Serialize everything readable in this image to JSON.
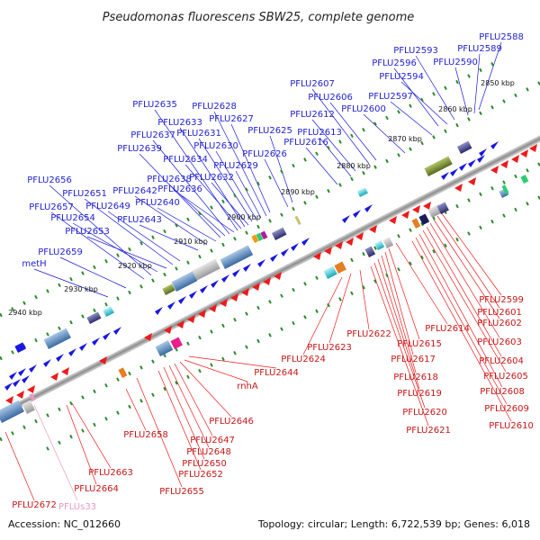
{
  "title": "Pseudomonas fluorescens SBW25, complete genome",
  "footer": {
    "accession": "Accession: NC_012660",
    "summary": "Topology: circular; Length: 6,722,539 bp; Genes: 6,018"
  },
  "scale_labels": [
    "2850 kbp",
    "2860 kbp",
    "2870 kbp",
    "2880 kbp",
    "2890 kbp",
    "2900 kbp",
    "2910 kbp",
    "2920 kbp",
    "2930 kbp",
    "2940 kbp"
  ],
  "colors": {
    "forward": "#1818e0",
    "reverse": "#ee1a1a",
    "rna": "#e89ac0",
    "backbone": "#999999",
    "tick": "#2a8a2a"
  },
  "top_labels": [
    "PFLU2588",
    "PFLU2589",
    "PFLU2590",
    "PFLU2593",
    "PFLU2594",
    "PFLU2596",
    "PFLU2597",
    "PFLU2600",
    "PFLU2606",
    "PFLU2607",
    "PFLU2612",
    "PFLU2613",
    "PFLU2616",
    "PFLU2625",
    "PFLU2626",
    "PFLU2627",
    "PFLU2628",
    "PFLU2629",
    "PFLU2630",
    "PFLU2631",
    "PFLU2632",
    "PFLU2633",
    "PFLU2634",
    "PFLU2635",
    "PFLU2636",
    "PFLU2637",
    "PFLU2638",
    "PFLU2639",
    "PFLU2640",
    "PFLU2642",
    "PFLU2643",
    "PFLU2649",
    "PFLU2651",
    "PFLU2653",
    "PFLU2654",
    "PFLU2656",
    "PFLU2657",
    "PFLU2659",
    "metH"
  ],
  "bottom_labels": [
    "PFLU2599",
    "PFLU2601",
    "PFLU2602",
    "PFLU2603",
    "PFLU2604",
    "PFLU2605",
    "PFLU2608",
    "PFLU2609",
    "PFLU2610",
    "PFLU2614",
    "PFLU2615",
    "PFLU2617",
    "PFLU2618",
    "PFLU2619",
    "PFLU2620",
    "PFLU2621",
    "PFLU2622",
    "PFLU2623",
    "PFLU2624",
    "PFLU2644",
    "rnhA",
    "PFLU2646",
    "PFLU2647",
    "PFLU2648",
    "PFLU2650",
    "PFLU2652",
    "PFLU2655",
    "PFLU2658",
    "PFLU2663",
    "PFLU2664",
    "PFLU2672",
    "PFLUs33"
  ]
}
